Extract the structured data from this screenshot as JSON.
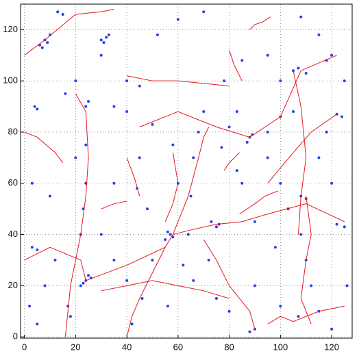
{
  "chart_data": {
    "type": "scatter",
    "xlim": [
      -1.5,
      128
    ],
    "ylim": [
      -0.5,
      130
    ],
    "xticks": [
      0,
      20,
      40,
      60,
      80,
      100,
      120
    ],
    "yticks": [
      0,
      20,
      40,
      60,
      80,
      100,
      120
    ],
    "grid": true,
    "series": [
      {
        "type": "scatter",
        "color": "#2440f0",
        "x": [
          8,
          6,
          10,
          7,
          9,
          30,
          32,
          31,
          33,
          24,
          22,
          26,
          23,
          25,
          57,
          55,
          58,
          56,
          75,
          73,
          76,
          88,
          87,
          89,
          105,
          110,
          107,
          122,
          124,
          125,
          122,
          110,
          108,
          90,
          88,
          5,
          4,
          3,
          5,
          24,
          25,
          100,
          105,
          13,
          15,
          120,
          118,
          24,
          24,
          23,
          22,
          18,
          17,
          62,
          64,
          65,
          66,
          68,
          78,
          50,
          40,
          35,
          45,
          70,
          80,
          95,
          100,
          103,
          108,
          110,
          112,
          107,
          100,
          80,
          90,
          46,
          42,
          50,
          12,
          8,
          2,
          45,
          58,
          60,
          120,
          125,
          95,
          75,
          30,
          40,
          20,
          16,
          20,
          98,
          90,
          85,
          83,
          115,
          118,
          100,
          85,
          10,
          3,
          52,
          60,
          70,
          108,
          115,
          35,
          44,
          30,
          35,
          40,
          56,
          66,
          72,
          48,
          115,
          120,
          126,
          5,
          95,
          77,
          83
        ],
        "y": [
          116,
          114,
          118,
          113,
          115,
          116,
          117,
          115,
          118,
          22,
          20,
          23,
          21,
          24,
          40,
          38,
          39,
          41,
          43,
          45,
          44,
          78,
          76,
          79,
          104,
          103,
          105,
          87,
          86,
          43,
          44,
          54,
          55,
          3,
          2,
          89,
          90,
          35,
          34,
          90,
          92,
          86,
          88,
          127,
          126,
          110,
          108,
          75,
          60,
          50,
          40,
          8,
          12,
          28,
          40,
          55,
          70,
          80,
          100,
          83,
          88,
          90,
          98,
          88,
          82,
          80,
          60,
          50,
          40,
          30,
          20,
          8,
          12,
          10,
          20,
          15,
          5,
          30,
          30,
          20,
          12,
          70,
          75,
          60,
          60,
          100,
          110,
          15,
          110,
          100,
          100,
          95,
          70,
          35,
          45,
          60,
          65,
          70,
          80,
          100,
          108,
          55,
          60,
          118,
          124,
          127,
          125,
          118,
          60,
          58,
          40,
          30,
          22,
          12,
          22,
          30,
          50,
          10,
          3,
          20,
          5,
          70,
          74,
          88
        ]
      },
      {
        "type": "line",
        "color": "#e8141e",
        "x": [
          0,
          8,
          20,
          30,
          35
        ],
        "y": [
          110,
          116,
          126,
          127,
          128
        ]
      },
      {
        "type": "line",
        "color": "#e8141e",
        "x": [
          20,
          24,
          25,
          24,
          22,
          18,
          16
        ],
        "y": [
          95,
          88,
          70,
          55,
          40,
          20,
          0
        ]
      },
      {
        "type": "line",
        "color": "#e8141e",
        "x": [
          0,
          10,
          22,
          24,
          40,
          55,
          58
        ],
        "y": [
          30,
          35,
          30,
          22,
          28,
          35,
          40
        ]
      },
      {
        "type": "line",
        "color": "#e8141e",
        "x": [
          58,
          66,
          75,
          85,
          95,
          110,
          125
        ],
        "y": [
          40,
          42,
          44,
          45,
          48,
          52,
          45
        ]
      },
      {
        "type": "line",
        "color": "#e8141e",
        "x": [
          58,
          64,
          68,
          70,
          72
        ],
        "y": [
          40,
          55,
          70,
          78,
          82
        ]
      },
      {
        "type": "line",
        "color": "#e8141e",
        "x": [
          45,
          60,
          75,
          88,
          100,
          108,
          122
        ],
        "y": [
          82,
          88,
          82,
          78,
          86,
          104,
          110
        ]
      },
      {
        "type": "line",
        "color": "#e8141e",
        "x": [
          40,
          50,
          60,
          70,
          80
        ],
        "y": [
          102,
          100,
          100,
          99,
          98
        ]
      },
      {
        "type": "line",
        "color": "#e8141e",
        "x": [
          105,
          108,
          110,
          108,
          107
        ],
        "y": [
          104,
          90,
          70,
          55,
          40
        ]
      },
      {
        "type": "line",
        "color": "#e8141e",
        "x": [
          110,
          112,
          110,
          108,
          112
        ],
        "y": [
          55,
          40,
          30,
          15,
          5
        ]
      },
      {
        "type": "line",
        "color": "#e8141e",
        "x": [
          70,
          75,
          80,
          88,
          90
        ],
        "y": [
          38,
          30,
          20,
          10,
          3
        ]
      },
      {
        "type": "line",
        "color": "#e8141e",
        "x": [
          40,
          42,
          45,
          50,
          55
        ],
        "y": [
          0,
          8,
          15,
          25,
          35
        ]
      },
      {
        "type": "line",
        "color": "#e8141e",
        "x": [
          30,
          40,
          50,
          60,
          70,
          80
        ],
        "y": [
          18,
          20,
          22,
          20,
          18,
          15
        ]
      },
      {
        "type": "line",
        "color": "#e8141e",
        "x": [
          0,
          5,
          12,
          15
        ],
        "y": [
          80,
          78,
          72,
          68
        ]
      },
      {
        "type": "line",
        "color": "#e8141e",
        "x": [
          40,
          43,
          45
        ],
        "y": [
          70,
          62,
          55
        ]
      },
      {
        "type": "line",
        "color": "#e8141e",
        "x": [
          58,
          60,
          58,
          55
        ],
        "y": [
          72,
          60,
          52,
          45
        ]
      },
      {
        "type": "line",
        "color": "#e8141e",
        "x": [
          78,
          80,
          84
        ],
        "y": [
          65,
          68,
          72
        ]
      },
      {
        "type": "line",
        "color": "#e8141e",
        "x": [
          95,
          100,
          105,
          112,
          122
        ],
        "y": [
          60,
          66,
          72,
          80,
          87
        ]
      },
      {
        "type": "line",
        "color": "#e8141e",
        "x": [
          84,
          90,
          94,
          99
        ],
        "y": [
          48,
          52,
          55,
          57
        ]
      },
      {
        "type": "line",
        "color": "#e8141e",
        "x": [
          88,
          90,
          93,
          96
        ],
        "y": [
          120,
          122,
          123,
          125
        ]
      },
      {
        "type": "line",
        "color": "#e8141e",
        "x": [
          80,
          82,
          85
        ],
        "y": [
          112,
          106,
          100
        ]
      },
      {
        "type": "line",
        "color": "#e8141e",
        "x": [
          95,
          100,
          105,
          115,
          125
        ],
        "y": [
          5,
          8,
          6,
          10,
          12
        ]
      },
      {
        "type": "line",
        "color": "#e8141e",
        "x": [
          30,
          35,
          40
        ],
        "y": [
          50,
          52,
          53
        ]
      }
    ]
  }
}
